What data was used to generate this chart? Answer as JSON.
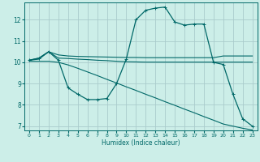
{
  "xlabel": "Humidex (Indice chaleur)",
  "bg_color": "#cceee8",
  "grid_color": "#aacccc",
  "line_color": "#006868",
  "x": [
    0,
    1,
    2,
    3,
    4,
    5,
    6,
    7,
    8,
    9,
    10,
    11,
    12,
    13,
    14,
    15,
    16,
    17,
    18,
    19,
    20,
    21,
    22,
    23
  ],
  "line1_marked": [
    10.1,
    10.2,
    10.5,
    10.1,
    8.8,
    8.5,
    8.25,
    8.25,
    8.3,
    9.0,
    10.15,
    12.0,
    12.45,
    12.55,
    12.6,
    11.9,
    11.75,
    11.8,
    11.8,
    10.0,
    9.9,
    8.5,
    7.35,
    7.0
  ],
  "line2_flat1": [
    10.1,
    10.2,
    10.5,
    10.35,
    10.3,
    10.28,
    10.27,
    10.26,
    10.25,
    10.24,
    10.23,
    10.23,
    10.22,
    10.22,
    10.22,
    10.22,
    10.22,
    10.22,
    10.22,
    10.22,
    10.3,
    10.3,
    10.3,
    10.3
  ],
  "line3_flat2": [
    10.1,
    10.15,
    10.5,
    10.2,
    10.18,
    10.15,
    10.13,
    10.1,
    10.08,
    10.05,
    10.03,
    10.02,
    10.01,
    10.01,
    10.01,
    10.01,
    10.01,
    10.01,
    10.01,
    10.01,
    10.01,
    10.01,
    10.01,
    10.01
  ],
  "line4_diag": [
    10.05,
    10.05,
    10.05,
    10.0,
    9.88,
    9.72,
    9.55,
    9.38,
    9.2,
    9.03,
    8.85,
    8.68,
    8.5,
    8.33,
    8.15,
    7.98,
    7.8,
    7.63,
    7.45,
    7.28,
    7.1,
    7.0,
    6.9,
    6.82
  ],
  "ylim": [
    6.8,
    12.8
  ],
  "xlim": [
    -0.5,
    23.5
  ],
  "yticks": [
    7,
    8,
    9,
    10,
    11,
    12
  ],
  "xticks": [
    0,
    1,
    2,
    3,
    4,
    5,
    6,
    7,
    8,
    9,
    10,
    11,
    12,
    13,
    14,
    15,
    16,
    17,
    18,
    19,
    20,
    21,
    22,
    23
  ]
}
